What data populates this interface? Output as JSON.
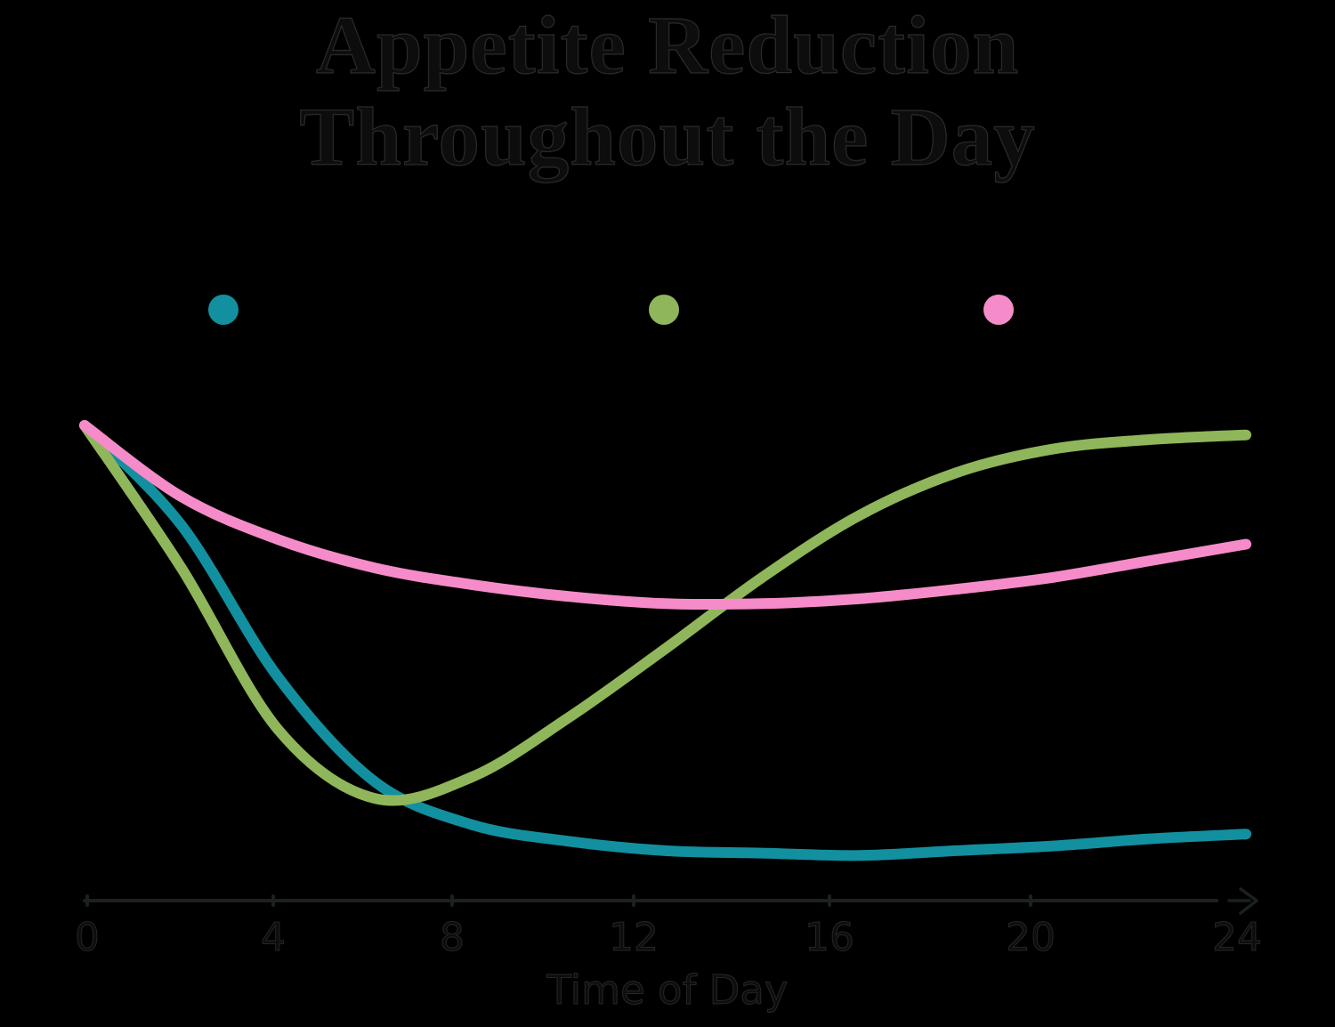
{
  "title": {
    "line1": "Appetite Reduction",
    "line2": "Throughout the Day"
  },
  "legend": {
    "items": [
      {
        "name": "teal",
        "color": "#12909F",
        "label": ""
      },
      {
        "name": "green",
        "color": "#8FB65A",
        "label": ""
      },
      {
        "name": "pink",
        "color": "#F58CC9",
        "label": ""
      }
    ]
  },
  "x_axis": {
    "label": "Time of Day",
    "ticks": [
      "0",
      "4",
      "8",
      "12",
      "16",
      "20",
      "24"
    ]
  },
  "chart_data": {
    "type": "line",
    "title": "Appetite Reduction Throughout the Day",
    "xlabel": "Time of Day",
    "ylabel": "",
    "xlim": [
      0,
      24
    ],
    "x_ticks": [
      0,
      4,
      8,
      12,
      16,
      20,
      24
    ],
    "y_units": "relative (no y-axis shown; 100 = shared level at hour 0)",
    "ylim": [
      0,
      100
    ],
    "grid": false,
    "y_axis_visible": false,
    "legend_position": "top",
    "x": [
      0,
      2,
      4,
      6,
      8,
      10,
      12,
      14,
      16,
      18,
      20,
      22,
      24
    ],
    "series": [
      {
        "name": "teal",
        "color": "#12909F",
        "values": [
          100,
          79,
          47,
          25,
          16,
          12.5,
          10.5,
          10,
          9.5,
          10.5,
          11.5,
          13,
          14
        ]
      },
      {
        "name": "green",
        "color": "#8FB65A",
        "values": [
          100,
          70,
          36,
          21.5,
          26,
          38.5,
          53,
          68,
          81,
          90,
          95,
          97,
          98
        ]
      },
      {
        "name": "pink",
        "color": "#F58CC9",
        "values": [
          100,
          85,
          76,
          70,
          66.5,
          64,
          62.5,
          62.5,
          63.5,
          65.5,
          68,
          71.5,
          75
        ]
      }
    ]
  },
  "colors": {
    "background": "#000000",
    "text": "#0d0d0d",
    "axis": "#1b211c"
  }
}
